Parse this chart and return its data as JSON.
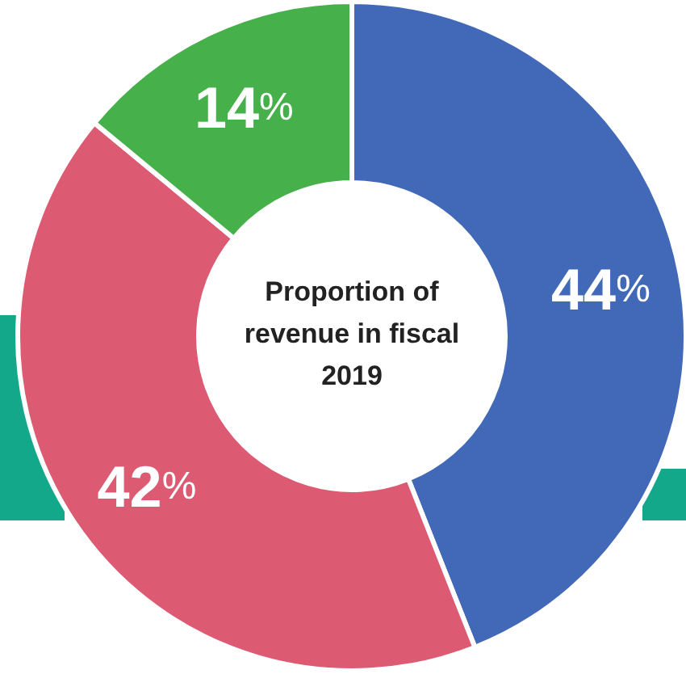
{
  "chart_data": {
    "type": "donut",
    "title": "Proportion of revenue in fiscal 2019",
    "categories": [
      null,
      null,
      null
    ],
    "values": [
      44,
      42,
      14
    ],
    "colors": [
      "#4169b8",
      "#dc5a72",
      "#46b04a"
    ],
    "value_labels": [
      "44%",
      "42%",
      "14%"
    ]
  }
}
